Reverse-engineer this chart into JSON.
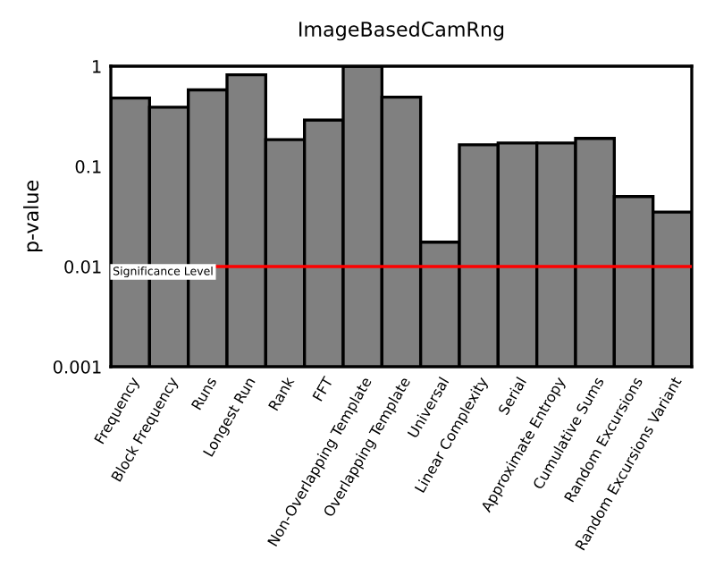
{
  "chart_data": {
    "type": "bar",
    "title": "ImageBasedCamRng",
    "ylabel": "p-value",
    "categories": [
      "Frequency",
      "Block Frequency",
      "Runs",
      "Longest Run",
      "Rank",
      "FFT",
      "Non-Overlapping Template",
      "Overlapping Template",
      "Universal",
      "Linear Complexity",
      "Serial",
      "Approximate Entropy",
      "Cumulative Sums",
      "Random Excursions",
      "Random Excursions Variant"
    ],
    "values": [
      0.48,
      0.39,
      0.58,
      0.82,
      0.185,
      0.29,
      1.0,
      0.49,
      0.0175,
      0.164,
      0.171,
      0.171,
      0.19,
      0.05,
      0.035
    ],
    "color": "#808080",
    "log": true,
    "ylim": [
      0.001,
      1
    ],
    "yticks": [
      0.001,
      0.01,
      0.1,
      1
    ],
    "ref_lines": [
      {
        "axis": "y",
        "value": 0.01,
        "label": "Significance Level",
        "color": "#ff0000"
      }
    ],
    "grid": false,
    "legend": false
  }
}
